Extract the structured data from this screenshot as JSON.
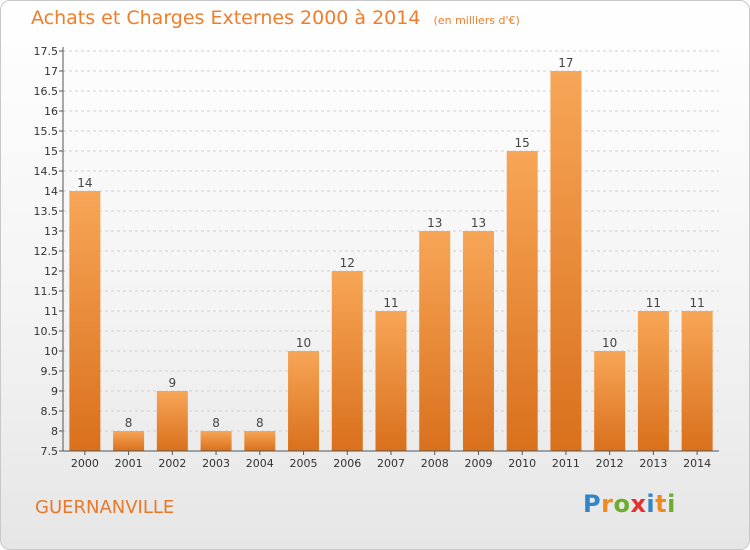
{
  "header": {
    "title": "Achats et Charges Externes 2000 à 2014",
    "unit": "(en milliers d'€)"
  },
  "footer": {
    "commune": "GUERNANVILLE",
    "logo_text": "Proxiti",
    "logo_letters": [
      {
        "char": "P",
        "color": "#2f86c8"
      },
      {
        "char": "r",
        "color": "#f08a1e"
      },
      {
        "char": "o",
        "color": "#6cae2c"
      },
      {
        "char": "x",
        "color": "#e5322d"
      },
      {
        "char": "i",
        "color": "#2f86c8"
      },
      {
        "char": "t",
        "color": "#f08a1e"
      },
      {
        "char": "i",
        "color": "#6cae2c"
      }
    ]
  },
  "colors": {
    "accent": "#f07d2c",
    "bar_top": "#f7a657",
    "bar_bottom": "#d9701c",
    "grid": "#d0d0d0"
  },
  "chart_data": {
    "type": "bar",
    "categories": [
      "2000",
      "2001",
      "2002",
      "2003",
      "2004",
      "2005",
      "2006",
      "2007",
      "2008",
      "2009",
      "2010",
      "2011",
      "2012",
      "2013",
      "2014"
    ],
    "values": [
      14,
      8,
      9,
      8,
      8,
      10,
      12,
      11,
      13,
      13,
      15,
      17,
      10,
      11,
      11
    ],
    "value_labels": [
      "14",
      "8",
      "9",
      "8",
      "8",
      "10",
      "12",
      "11",
      "13",
      "13",
      "15",
      "17",
      "10",
      "11",
      "11"
    ],
    "yticks": [
      "7.5",
      "8",
      "8.5",
      "9",
      "9.5",
      "10",
      "10.5",
      "11",
      "11.5",
      "12",
      "12.5",
      "13",
      "13.5",
      "14",
      "14.5",
      "15",
      "15.5",
      "16",
      "16.5",
      "17",
      "17.5"
    ],
    "ylim": [
      7.5,
      17.5
    ],
    "grid": true
  }
}
